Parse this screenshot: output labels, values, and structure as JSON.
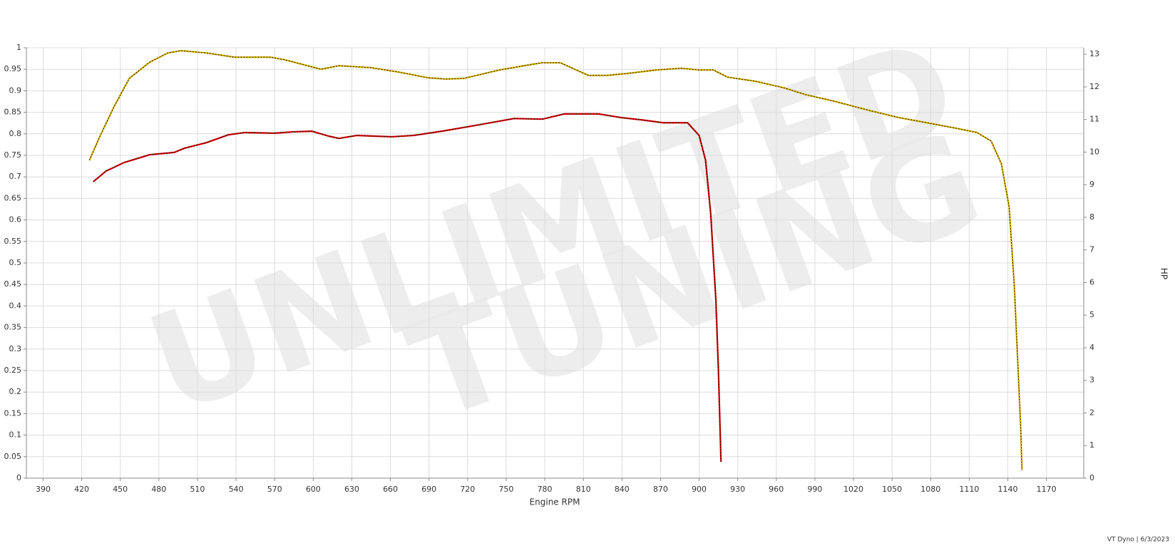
{
  "chart_data": {
    "type": "line",
    "watermark": [
      "UNLIMITED",
      "TUNING"
    ],
    "xlabel": "Engine RPM",
    "y2label": "HP",
    "footer": "VT Dyno | 6/3/2023",
    "xlim": [
      377,
      1199
    ],
    "xticks": [
      390,
      420,
      450,
      480,
      510,
      540,
      570,
      600,
      630,
      660,
      690,
      720,
      750,
      780,
      810,
      840,
      870,
      900,
      930,
      960,
      990,
      1020,
      1050,
      1080,
      1110,
      1140,
      1170
    ],
    "ylim": [
      0,
      1
    ],
    "yticks": [
      0,
      0.05,
      0.1,
      0.15,
      0.2,
      0.25,
      0.3,
      0.35,
      0.4,
      0.45,
      0.5,
      0.55,
      0.6,
      0.65,
      0.7,
      0.75,
      0.8,
      0.85,
      0.9,
      0.95,
      1
    ],
    "y2lim": [
      0,
      13.2
    ],
    "y2ticks": [
      0,
      1,
      2,
      3,
      4,
      5,
      6,
      7,
      8,
      9,
      10,
      11,
      12,
      13
    ],
    "grid": true,
    "series": [
      {
        "color": "#d4b000",
        "axis": "y2",
        "x": [
          426,
          434,
          445,
          457,
          473,
          487,
          497,
          517,
          539,
          567,
          578,
          606,
          620,
          645,
          667,
          689,
          703,
          717,
          745,
          767,
          778,
          792,
          814,
          828,
          844,
          867,
          886,
          900,
          911,
          922,
          944,
          966,
          983,
          1005,
          1033,
          1055,
          1077,
          1100,
          1116,
          1127,
          1135,
          1141,
          1145,
          1148,
          1150,
          1151
        ],
        "values": [
          9.75,
          10.47,
          11.38,
          12.26,
          12.76,
          13.04,
          13.11,
          13.04,
          12.91,
          12.91,
          12.83,
          12.54,
          12.65,
          12.59,
          12.45,
          12.28,
          12.24,
          12.26,
          12.52,
          12.67,
          12.74,
          12.74,
          12.35,
          12.35,
          12.41,
          12.52,
          12.57,
          12.52,
          12.52,
          12.3,
          12.17,
          11.97,
          11.76,
          11.56,
          11.27,
          11.06,
          10.9,
          10.73,
          10.6,
          10.34,
          9.64,
          8.32,
          5.92,
          3.3,
          1.55,
          0.24
        ]
      },
      {
        "color": "#d40000",
        "axis": "y2",
        "x": [
          429,
          439,
          453,
          473,
          492,
          500,
          517,
          534,
          547,
          570,
          584,
          599,
          612,
          620,
          634,
          661,
          678,
          700,
          722,
          745,
          756,
          778,
          795,
          822,
          839,
          855,
          872,
          891,
          900,
          905,
          909,
          913,
          915,
          917
        ],
        "values": [
          9.09,
          9.42,
          9.68,
          9.92,
          9.99,
          10.12,
          10.29,
          10.53,
          10.6,
          10.58,
          10.62,
          10.64,
          10.49,
          10.42,
          10.51,
          10.47,
          10.51,
          10.64,
          10.79,
          10.95,
          11.03,
          11.01,
          11.17,
          11.17,
          11.06,
          10.99,
          10.9,
          10.9,
          10.51,
          9.75,
          8.11,
          5.48,
          3.3,
          0.5
        ]
      }
    ]
  }
}
